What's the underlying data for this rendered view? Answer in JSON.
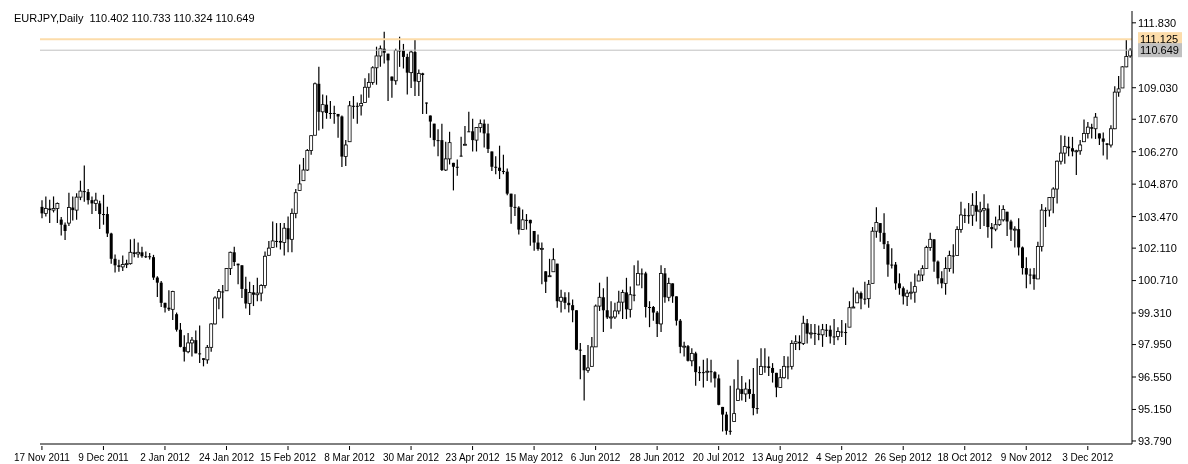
{
  "chart_data": {
    "type": "candlestick",
    "title": "EURJPY,Daily  110.402 110.733 110.324 110.649",
    "color": "#000000",
    "categories": [
      "17 Nov 2011",
      null,
      null,
      null,
      null,
      null,
      null,
      null,
      null,
      null,
      null,
      null,
      null,
      null,
      null,
      null,
      "9 Dec 2011",
      null,
      null,
      null,
      null,
      null,
      null,
      null,
      null,
      null,
      null,
      null,
      null,
      null,
      null,
      null,
      "2 Jan 2012",
      null,
      null,
      null,
      null,
      null,
      null,
      null,
      null,
      null,
      null,
      null,
      null,
      null,
      null,
      null,
      "24 Jan 2012",
      null,
      null,
      null,
      null,
      null,
      null,
      null,
      null,
      null,
      null,
      null,
      null,
      null,
      null,
      null,
      "15 Feb 2012",
      null,
      null,
      null,
      null,
      null,
      null,
      null,
      null,
      null,
      null,
      null,
      null,
      null,
      null,
      null,
      "8 Mar 2012",
      null,
      null,
      null,
      null,
      null,
      null,
      null,
      null,
      null,
      null,
      null,
      null,
      null,
      null,
      null,
      "30 Mar 2012",
      null,
      null,
      null,
      null,
      null,
      null,
      null,
      null,
      null,
      null,
      null,
      null,
      null,
      null,
      null,
      "23 Apr 2012",
      null,
      null,
      null,
      null,
      null,
      null,
      null,
      null,
      null,
      null,
      null,
      null,
      null,
      null,
      null,
      "15 May 2012",
      null,
      null,
      null,
      null,
      null,
      null,
      null,
      null,
      null,
      null,
      null,
      null,
      null,
      null,
      null,
      "6 Jun 2012",
      null,
      null,
      null,
      null,
      null,
      null,
      null,
      null,
      null,
      null,
      null,
      null,
      null,
      null,
      null,
      "28 Jun 2012",
      null,
      null,
      null,
      null,
      null,
      null,
      null,
      null,
      null,
      null,
      null,
      null,
      null,
      null,
      null,
      "20 Jul 2012",
      null,
      null,
      null,
      null,
      null,
      null,
      null,
      null,
      null,
      null,
      null,
      null,
      null,
      null,
      null,
      "13 Aug 2012",
      null,
      null,
      null,
      null,
      null,
      null,
      null,
      null,
      null,
      null,
      null,
      null,
      null,
      null,
      null,
      "4 Sep 2012",
      null,
      null,
      null,
      null,
      null,
      null,
      null,
      null,
      null,
      null,
      null,
      null,
      null,
      null,
      null,
      "26 Sep 2012",
      null,
      null,
      null,
      null,
      null,
      null,
      null,
      null,
      null,
      null,
      null,
      null,
      null,
      null,
      null,
      "18 Oct 2012",
      null,
      null,
      null,
      null,
      null,
      null,
      null,
      null,
      null,
      null,
      null,
      null,
      null,
      null,
      null,
      "9 Nov 2012",
      null,
      null,
      null,
      null,
      null,
      null,
      null,
      null,
      null,
      null,
      null,
      null,
      null,
      null,
      null,
      "3 Dec 2012",
      null,
      null,
      null,
      null,
      null,
      null,
      null,
      null,
      null,
      null,
      null
    ],
    "ohlc": [
      [
        103.89,
        104.18,
        103.4,
        103.61
      ],
      [
        103.61,
        104.34,
        103.47,
        103.82
      ],
      [
        103.82,
        104.2,
        103.19,
        103.75
      ],
      [
        103.75,
        104.34,
        103.65,
        103.82
      ],
      [
        103.82,
        104.08,
        103.19,
        104.04
      ],
      [
        103.34,
        103.45,
        102.66,
        103.12
      ],
      [
        103.12,
        103.22,
        102.46,
        102.85
      ],
      [
        103.19,
        104.5,
        103.07,
        103.86
      ],
      [
        103.86,
        104.34,
        103.3,
        103.75
      ],
      [
        103.75,
        104.48,
        103.33,
        104.31
      ],
      [
        104.31,
        105.02,
        104.18,
        104.57
      ],
      [
        104.57,
        105.68,
        104.11,
        104.53
      ],
      [
        104.53,
        104.66,
        103.99,
        104.18
      ],
      [
        104.18,
        104.34,
        103.58,
        104.04
      ],
      [
        104.04,
        104.5,
        103.71,
        104.18
      ],
      [
        104.04,
        104.15,
        102.93,
        103.58
      ],
      [
        103.58,
        104.41,
        103.12,
        103.58
      ],
      [
        103.58,
        103.89,
        102.59,
        102.74
      ],
      [
        102.74,
        102.77,
        101.44,
        101.65
      ],
      [
        101.65,
        101.83,
        101.06,
        101.37
      ],
      [
        101.37,
        101.61,
        101.09,
        101.3
      ],
      [
        101.3,
        101.79,
        101.12,
        101.4
      ],
      [
        101.4,
        101.61,
        101.25,
        101.44
      ],
      [
        101.44,
        102.49,
        101.4,
        101.93
      ],
      [
        101.93,
        102.52,
        101.72,
        101.86
      ],
      [
        101.86,
        102.35,
        101.69,
        101.93
      ],
      [
        101.93,
        102.17,
        101.69,
        101.76
      ],
      [
        101.76,
        101.96,
        101.68,
        101.76
      ],
      [
        101.76,
        101.9,
        101.62,
        101.72
      ],
      [
        101.72,
        101.82,
        100.74,
        100.84
      ],
      [
        100.84,
        100.9,
        100.0,
        100.62
      ],
      [
        100.62,
        100.69,
        99.57,
        99.75
      ],
      [
        99.75,
        99.75,
        99.33,
        99.54
      ],
      [
        99.54,
        100.29,
        99.4,
        99.47
      ],
      [
        99.47,
        100.27,
        99.01,
        100.24
      ],
      [
        99.26,
        99.33,
        98.51,
        98.59
      ],
      [
        98.59,
        98.88,
        97.83,
        97.85
      ],
      [
        97.85,
        98.35,
        97.22,
        97.64
      ],
      [
        97.64,
        98.45,
        97.57,
        98.02
      ],
      [
        98.02,
        98.28,
        97.43,
        98.14
      ],
      [
        98.14,
        98.56,
        97.57,
        97.57
      ],
      [
        97.57,
        98.77,
        97.15,
        97.57
      ],
      [
        97.36,
        97.36,
        97.01,
        97.29
      ],
      [
        97.29,
        97.93,
        97.12,
        97.83
      ],
      [
        97.83,
        98.87,
        97.64,
        98.84
      ],
      [
        98.84,
        100.03,
        98.81,
        99.96
      ],
      [
        99.96,
        100.35,
        99.47,
        100.24
      ],
      [
        100.24,
        100.52,
        99.09,
        100.24
      ],
      [
        100.27,
        101.25,
        100.27,
        101.23
      ],
      [
        101.23,
        101.96,
        100.95,
        101.93
      ],
      [
        101.93,
        102.17,
        101.34,
        101.51
      ],
      [
        101.44,
        101.44,
        100.55,
        101.37
      ],
      [
        101.37,
        101.37,
        99.96,
        100.35
      ],
      [
        100.35,
        100.88,
        99.51,
        99.72
      ],
      [
        99.72,
        100.66,
        99.23,
        100.2
      ],
      [
        100.2,
        100.52,
        99.61,
        100.1
      ],
      [
        100.1,
        100.83,
        99.82,
        100.17
      ],
      [
        100.17,
        100.55,
        99.82,
        100.5
      ],
      [
        100.5,
        101.96,
        100.38,
        101.76
      ],
      [
        101.8,
        102.42,
        101.79,
        102.11
      ],
      [
        102.14,
        103.26,
        102.14,
        102.42
      ],
      [
        102.42,
        103.19,
        102.14,
        102.42
      ],
      [
        102.42,
        103.19,
        102.05,
        102.35
      ],
      [
        102.35,
        103.19,
        101.79,
        102.97
      ],
      [
        102.97,
        103.47,
        101.93,
        102.49
      ],
      [
        102.49,
        103.82,
        101.93,
        103.61
      ],
      [
        103.61,
        104.66,
        103.4,
        104.5
      ],
      [
        104.6,
        105.72,
        104.6,
        104.88
      ],
      [
        105.02,
        106.0,
        105.02,
        105.48
      ],
      [
        105.48,
        106.39,
        105.44,
        106.32
      ],
      [
        106.32,
        106.98,
        106.14,
        106.96
      ],
      [
        106.98,
        109.26,
        106.98,
        109.2
      ],
      [
        109.2,
        109.93,
        107.19,
        107.99
      ],
      [
        107.99,
        108.74,
        107.26,
        108.3
      ],
      [
        108.3,
        108.7,
        107.69,
        107.94
      ],
      [
        107.94,
        108.46,
        107.69,
        107.94
      ],
      [
        107.94,
        108.25,
        107.48,
        107.93
      ],
      [
        107.9,
        107.9,
        106.87,
        107.79
      ],
      [
        107.79,
        107.83,
        105.61,
        106.06
      ],
      [
        106.06,
        106.77,
        105.65,
        106.56
      ],
      [
        106.7,
        108.46,
        106.7,
        108.25
      ],
      [
        108.25,
        108.67,
        107.69,
        108.25
      ],
      [
        108.25,
        108.39,
        107.48,
        108.25
      ],
      [
        108.25,
        108.74,
        107.83,
        108.35
      ],
      [
        108.39,
        109.44,
        108.39,
        109.05
      ],
      [
        109.05,
        109.65,
        108.6,
        109.26
      ],
      [
        109.26,
        109.96,
        109.16,
        109.89
      ],
      [
        109.89,
        110.8,
        109.16,
        110.4
      ],
      [
        110.4,
        110.85,
        109.93,
        110.71
      ],
      [
        110.71,
        111.45,
        110.07,
        110.54
      ],
      [
        110.5,
        110.5,
        108.46,
        110.21
      ],
      [
        109.51,
        109.51,
        108.6,
        109.33
      ],
      [
        109.33,
        110.71,
        109.16,
        110.64
      ],
      [
        110.64,
        111.23,
        109.93,
        110.64
      ],
      [
        110.64,
        110.92,
        109.86,
        110.36
      ],
      [
        110.36,
        110.5,
        108.74,
        109.68
      ],
      [
        109.68,
        110.64,
        109.02,
        110.57
      ],
      [
        110.57,
        111.13,
        108.67,
        109.3
      ],
      [
        109.3,
        109.82,
        108.67,
        109.65
      ],
      [
        109.65,
        109.68,
        107.9,
        109.58
      ],
      [
        108.39,
        108.39,
        107.9,
        108.35
      ],
      [
        107.83,
        107.83,
        106.87,
        107.57
      ],
      [
        107.48,
        107.48,
        106.49,
        106.77
      ],
      [
        106.77,
        107.24,
        106.07,
        106.77
      ],
      [
        106.77,
        107.48,
        105.44,
        105.48
      ],
      [
        105.48,
        106.7,
        105.44,
        105.96
      ],
      [
        105.96,
        107.13,
        105.72,
        106.66
      ],
      [
        105.79,
        105.79,
        104.6,
        105.62
      ],
      [
        105.62,
        105.93,
        105.23,
        105.62
      ],
      [
        106.1,
        106.91,
        106.07,
        106.1
      ],
      [
        106.56,
        107.38,
        106.56,
        106.59
      ],
      [
        107.15,
        107.99,
        107.13,
        107.15
      ],
      [
        107.15,
        107.69,
        106.28,
        106.77
      ],
      [
        106.77,
        107.33,
        106.28,
        107.31
      ],
      [
        107.31,
        107.66,
        107.1,
        107.48
      ],
      [
        107.48,
        107.66,
        106.45,
        107.06
      ],
      [
        107.06,
        107.48,
        106.21,
        106.39
      ],
      [
        106.28,
        106.28,
        105.44,
        105.62
      ],
      [
        105.62,
        106.07,
        105.3,
        105.58
      ],
      [
        105.58,
        106.53,
        105.09,
        105.44
      ],
      [
        105.44,
        106.14,
        105.3,
        105.41
      ],
      [
        105.41,
        105.55,
        104.39,
        104.46
      ],
      [
        104.46,
        104.46,
        103.16,
        103.89
      ],
      [
        103.89,
        104.43,
        103.5,
        103.86
      ],
      [
        103.86,
        103.92,
        102.7,
        102.91
      ],
      [
        102.91,
        103.78,
        102.91,
        103.33
      ],
      [
        103.33,
        103.58,
        102.91,
        103.33
      ],
      [
        103.33,
        103.33,
        102.21,
        103.18
      ],
      [
        102.85,
        102.85,
        102.0,
        102.35
      ],
      [
        102.35,
        102.7,
        102.0,
        102.07
      ],
      [
        102.07,
        102.35,
        100.55,
        102.1
      ],
      [
        101.11,
        101.11,
        100.17,
        100.66
      ],
      [
        100.88,
        101.65,
        100.88,
        100.92
      ],
      [
        101.09,
        102.1,
        101.09,
        101.61
      ],
      [
        101.44,
        101.44,
        99.54,
        99.82
      ],
      [
        99.82,
        100.31,
        99.33,
        99.99
      ],
      [
        99.99,
        100.21,
        99.47,
        99.75
      ],
      [
        99.75,
        100.21,
        99.33,
        99.65
      ],
      [
        99.65,
        99.89,
        98.91,
        99.43
      ],
      [
        99.43,
        99.43,
        97.71,
        97.73
      ],
      [
        97.73,
        98.02,
        96.45,
        97.73
      ],
      [
        97.5,
        97.5,
        95.54,
        96.84
      ],
      [
        96.84,
        97.93,
        96.73,
        96.94
      ],
      [
        97.01,
        98.28,
        97.01,
        97.85
      ],
      [
        97.85,
        99.68,
        97.85,
        99.61
      ],
      [
        99.61,
        100.62,
        99.4,
        99.99
      ],
      [
        99.99,
        100.38,
        98.49,
        99.43
      ],
      [
        99.43,
        100.88,
        99.05,
        99.12
      ],
      [
        99.12,
        99.82,
        98.63,
        99.14
      ],
      [
        99.14,
        99.75,
        99.05,
        99.4
      ],
      [
        99.4,
        100.27,
        99.26,
        99.78
      ],
      [
        99.78,
        100.31,
        99.05,
        100.2
      ],
      [
        100.2,
        100.83,
        99.05,
        99.47
      ],
      [
        99.47,
        100.45,
        99.12,
        100.1
      ],
      [
        100.1,
        101.37,
        99.82,
        100.1
      ],
      [
        100.52,
        101.58,
        100.52,
        101.02
      ],
      [
        101.02,
        101.23,
        100.38,
        101.02
      ],
      [
        101.02,
        101.09,
        99.12,
        99.57
      ],
      [
        99.57,
        99.82,
        98.7,
        99.57
      ],
      [
        99.57,
        99.61,
        98.98,
        99.33
      ],
      [
        99.33,
        99.4,
        98.28,
        98.84
      ],
      [
        98.84,
        101.37,
        98.49,
        101.02
      ],
      [
        101.02,
        101.25,
        99.75,
        99.99
      ],
      [
        99.99,
        100.83,
        99.82,
        100.59
      ],
      [
        100.59,
        100.59,
        99.75,
        100.03
      ],
      [
        100.03,
        100.03,
        98.77,
        98.98
      ],
      [
        98.98,
        99.05,
        97.57,
        97.85
      ],
      [
        97.85,
        98.07,
        97.43,
        97.88
      ],
      [
        97.88,
        97.93,
        97.22,
        97.25
      ],
      [
        97.25,
        97.79,
        97.01,
        97.57
      ],
      [
        97.57,
        97.64,
        96.17,
        96.76
      ],
      [
        96.76,
        97.01,
        96.38,
        96.76
      ],
      [
        96.76,
        97.29,
        96.1,
        96.76
      ],
      [
        96.76,
        97.36,
        96.38,
        96.8
      ],
      [
        96.8,
        97.29,
        96.31,
        96.76
      ],
      [
        96.76,
        96.8,
        96.1,
        96.49
      ],
      [
        96.49,
        96.66,
        95.33,
        95.35
      ],
      [
        95.26,
        95.26,
        94.2,
        94.93
      ],
      [
        94.93,
        95.05,
        94.06,
        94.23
      ],
      [
        94.23,
        96.17,
        94.06,
        94.23
      ],
      [
        94.63,
        96.45,
        94.63,
        94.97
      ],
      [
        95.54,
        97.29,
        95.54,
        96.03
      ],
      [
        96.03,
        96.59,
        95.54,
        95.82
      ],
      [
        95.82,
        96.31,
        95.47,
        96.03
      ],
      [
        96.03,
        96.45,
        95.61,
        95.82
      ],
      [
        95.82,
        96.94,
        94.9,
        95.21
      ],
      [
        95.21,
        97.36,
        94.97,
        95.21
      ],
      [
        96.66,
        97.79,
        96.66,
        97.01
      ],
      [
        97.01,
        97.79,
        96.73,
        97.01
      ],
      [
        97.01,
        97.43,
        96.59,
        96.94
      ],
      [
        96.94,
        97.15,
        96.31,
        96.73
      ],
      [
        96.73,
        96.73,
        95.68,
        96.1
      ],
      [
        96.1,
        96.9,
        96.1,
        96.52
      ],
      [
        96.52,
        97.46,
        96.48,
        97.01
      ],
      [
        97.01,
        97.43,
        96.45,
        97.01
      ],
      [
        97.01,
        98.14,
        96.87,
        98.0
      ],
      [
        98.0,
        98.35,
        97.71,
        98.07
      ],
      [
        98.07,
        98.35,
        97.71,
        98.0
      ],
      [
        98.0,
        99.19,
        97.93,
        98.87
      ],
      [
        98.87,
        99.05,
        98.0,
        98.42
      ],
      [
        98.42,
        98.84,
        98.21,
        98.45
      ],
      [
        98.45,
        98.84,
        97.93,
        98.42
      ],
      [
        98.42,
        98.77,
        98.14,
        98.37
      ],
      [
        98.37,
        98.84,
        97.85,
        98.59
      ],
      [
        98.59,
        98.84,
        98.28,
        98.59
      ],
      [
        98.59,
        98.77,
        98.0,
        98.3
      ],
      [
        98.3,
        99.05,
        97.93,
        98.3
      ],
      [
        98.3,
        98.7,
        98.14,
        98.51
      ],
      [
        98.51,
        99.01,
        98.28,
        98.49
      ],
      [
        98.49,
        98.87,
        97.93,
        98.49
      ],
      [
        98.7,
        99.82,
        98.7,
        99.54
      ],
      [
        99.54,
        100.41,
        99.54,
        99.57
      ],
      [
        99.75,
        100.27,
        99.75,
        100.17
      ],
      [
        100.17,
        100.24,
        99.47,
        99.93
      ],
      [
        99.93,
        100.66,
        99.68,
        99.93
      ],
      [
        99.93,
        100.74,
        99.54,
        100.55
      ],
      [
        100.59,
        103.02,
        100.59,
        102.84
      ],
      [
        102.84,
        103.87,
        102.56,
        103.22
      ],
      [
        103.19,
        103.19,
        102.38,
        102.77
      ],
      [
        102.77,
        103.61,
        102.07,
        102.28
      ],
      [
        102.28,
        102.42,
        100.88,
        101.4
      ],
      [
        101.4,
        102.1,
        101.23,
        101.4
      ],
      [
        101.4,
        101.51,
        100.31,
        100.59
      ],
      [
        100.59,
        101.02,
        100.1,
        100.38
      ],
      [
        100.38,
        100.45,
        99.68,
        100.03
      ],
      [
        100.03,
        100.31,
        99.61,
        100.17
      ],
      [
        100.17,
        100.66,
        99.89,
        100.21
      ],
      [
        100.21,
        101.02,
        99.75,
        100.45
      ],
      [
        100.69,
        101.16,
        100.69,
        100.95
      ],
      [
        100.95,
        101.37,
        100.69,
        101.23
      ],
      [
        101.23,
        102.21,
        101.23,
        102.14
      ],
      [
        102.14,
        102.77,
        102.0,
        102.49
      ],
      [
        102.49,
        102.49,
        101.09,
        101.53
      ],
      [
        101.53,
        101.58,
        100.55,
        100.81
      ],
      [
        100.81,
        101.11,
        100.38,
        100.59
      ],
      [
        100.59,
        101.72,
        100.1,
        101.23
      ],
      [
        101.23,
        102.0,
        101.09,
        101.79
      ],
      [
        101.79,
        102.28,
        101.02,
        101.79
      ],
      [
        101.79,
        103.05,
        101.79,
        102.91
      ],
      [
        102.91,
        104.11,
        102.77,
        103.54
      ],
      [
        103.54,
        103.82,
        103.19,
        103.53
      ],
      [
        103.53,
        104.06,
        103.16,
        103.53
      ],
      [
        103.53,
        104.48,
        103.07,
        103.96
      ],
      [
        103.96,
        104.57,
        103.26,
        103.68
      ],
      [
        103.68,
        104.11,
        102.93,
        103.75
      ],
      [
        103.75,
        104.43,
        103.07,
        103.82
      ],
      [
        103.82,
        104.04,
        102.56,
        103.02
      ],
      [
        103.02,
        103.19,
        102.1,
        102.93
      ],
      [
        102.93,
        103.47,
        102.84,
        103.12
      ],
      [
        103.12,
        103.96,
        103.07,
        103.33
      ],
      [
        103.33,
        103.96,
        103.26,
        103.78
      ],
      [
        103.68,
        103.68,
        102.63,
        103.26
      ],
      [
        103.26,
        103.33,
        102.42,
        102.91
      ],
      [
        102.91,
        103.05,
        102.14,
        102.93
      ],
      [
        102.93,
        103.4,
        101.79,
        102.14
      ],
      [
        102.14,
        102.18,
        100.97,
        101.25
      ],
      [
        101.25,
        101.72,
        100.38,
        100.97
      ],
      [
        100.97,
        101.23,
        100.55,
        100.97
      ],
      [
        100.97,
        101.25,
        100.31,
        100.78
      ],
      [
        100.78,
        102.38,
        100.78,
        102.18
      ],
      [
        102.18,
        104.01,
        101.96,
        103.75
      ],
      [
        103.75,
        103.87,
        103.02,
        103.75
      ],
      [
        103.75,
        104.31,
        103.47,
        104.29
      ],
      [
        104.29,
        104.74,
        103.61,
        104.66
      ],
      [
        104.66,
        105.89,
        104.04,
        105.86
      ],
      [
        105.86,
        106.98,
        105.72,
        106.21
      ],
      [
        106.21,
        106.96,
        105.75,
        106.49
      ],
      [
        106.49,
        106.91,
        106.07,
        106.42
      ],
      [
        106.42,
        106.91,
        106.07,
        106.28
      ],
      [
        106.28,
        106.35,
        105.27,
        106.31
      ],
      [
        106.31,
        106.77,
        106.14,
        106.56
      ],
      [
        106.7,
        107.66,
        106.7,
        107.06
      ],
      [
        107.06,
        107.55,
        106.84,
        107.33
      ],
      [
        107.33,
        107.48,
        106.84,
        107.26
      ],
      [
        107.26,
        107.94,
        106.82,
        107.76
      ],
      [
        107.06,
        107.06,
        106.56,
        106.84
      ],
      [
        106.84,
        107.1,
        106.11,
        106.7
      ],
      [
        106.63,
        106.63,
        105.93,
        106.56
      ],
      [
        106.56,
        107.41,
        106.45,
        107.26
      ],
      [
        107.26,
        109.09,
        107.24,
        108.84
      ],
      [
        108.84,
        109.54,
        108.64,
        108.98
      ],
      [
        109.02,
        109.96,
        109.02,
        109.93
      ],
      [
        109.93,
        111.13,
        109.91,
        110.38
      ],
      [
        110.402,
        110.733,
        110.324,
        110.649
      ]
    ],
    "ylim": [
      93.66,
      112.34
    ],
    "yticks": [
      {
        "value": 111.83,
        "label": "111.830"
      },
      {
        "value": 109.03,
        "label": "109.030"
      },
      {
        "value": 107.67,
        "label": "107.670"
      },
      {
        "value": 106.27,
        "label": "106.270"
      },
      {
        "value": 104.87,
        "label": "104.870"
      },
      {
        "value": 103.47,
        "label": "103.470"
      },
      {
        "value": 102.11,
        "label": "102.110"
      },
      {
        "value": 100.71,
        "label": "100.710"
      },
      {
        "value": 99.31,
        "label": "99.310"
      },
      {
        "value": 97.95,
        "label": "97.950"
      },
      {
        "value": 96.55,
        "label": "96.550"
      },
      {
        "value": 95.15,
        "label": "95.150"
      },
      {
        "value": 93.79,
        "label": "93.790"
      }
    ],
    "ref_lines": [
      {
        "axis": "y",
        "value": 111.125,
        "label": "111.125",
        "color": "#fcdcaa"
      },
      {
        "axis": "y",
        "value": 110.649,
        "label": "110.649",
        "color": "#c0c0c0"
      }
    ]
  }
}
